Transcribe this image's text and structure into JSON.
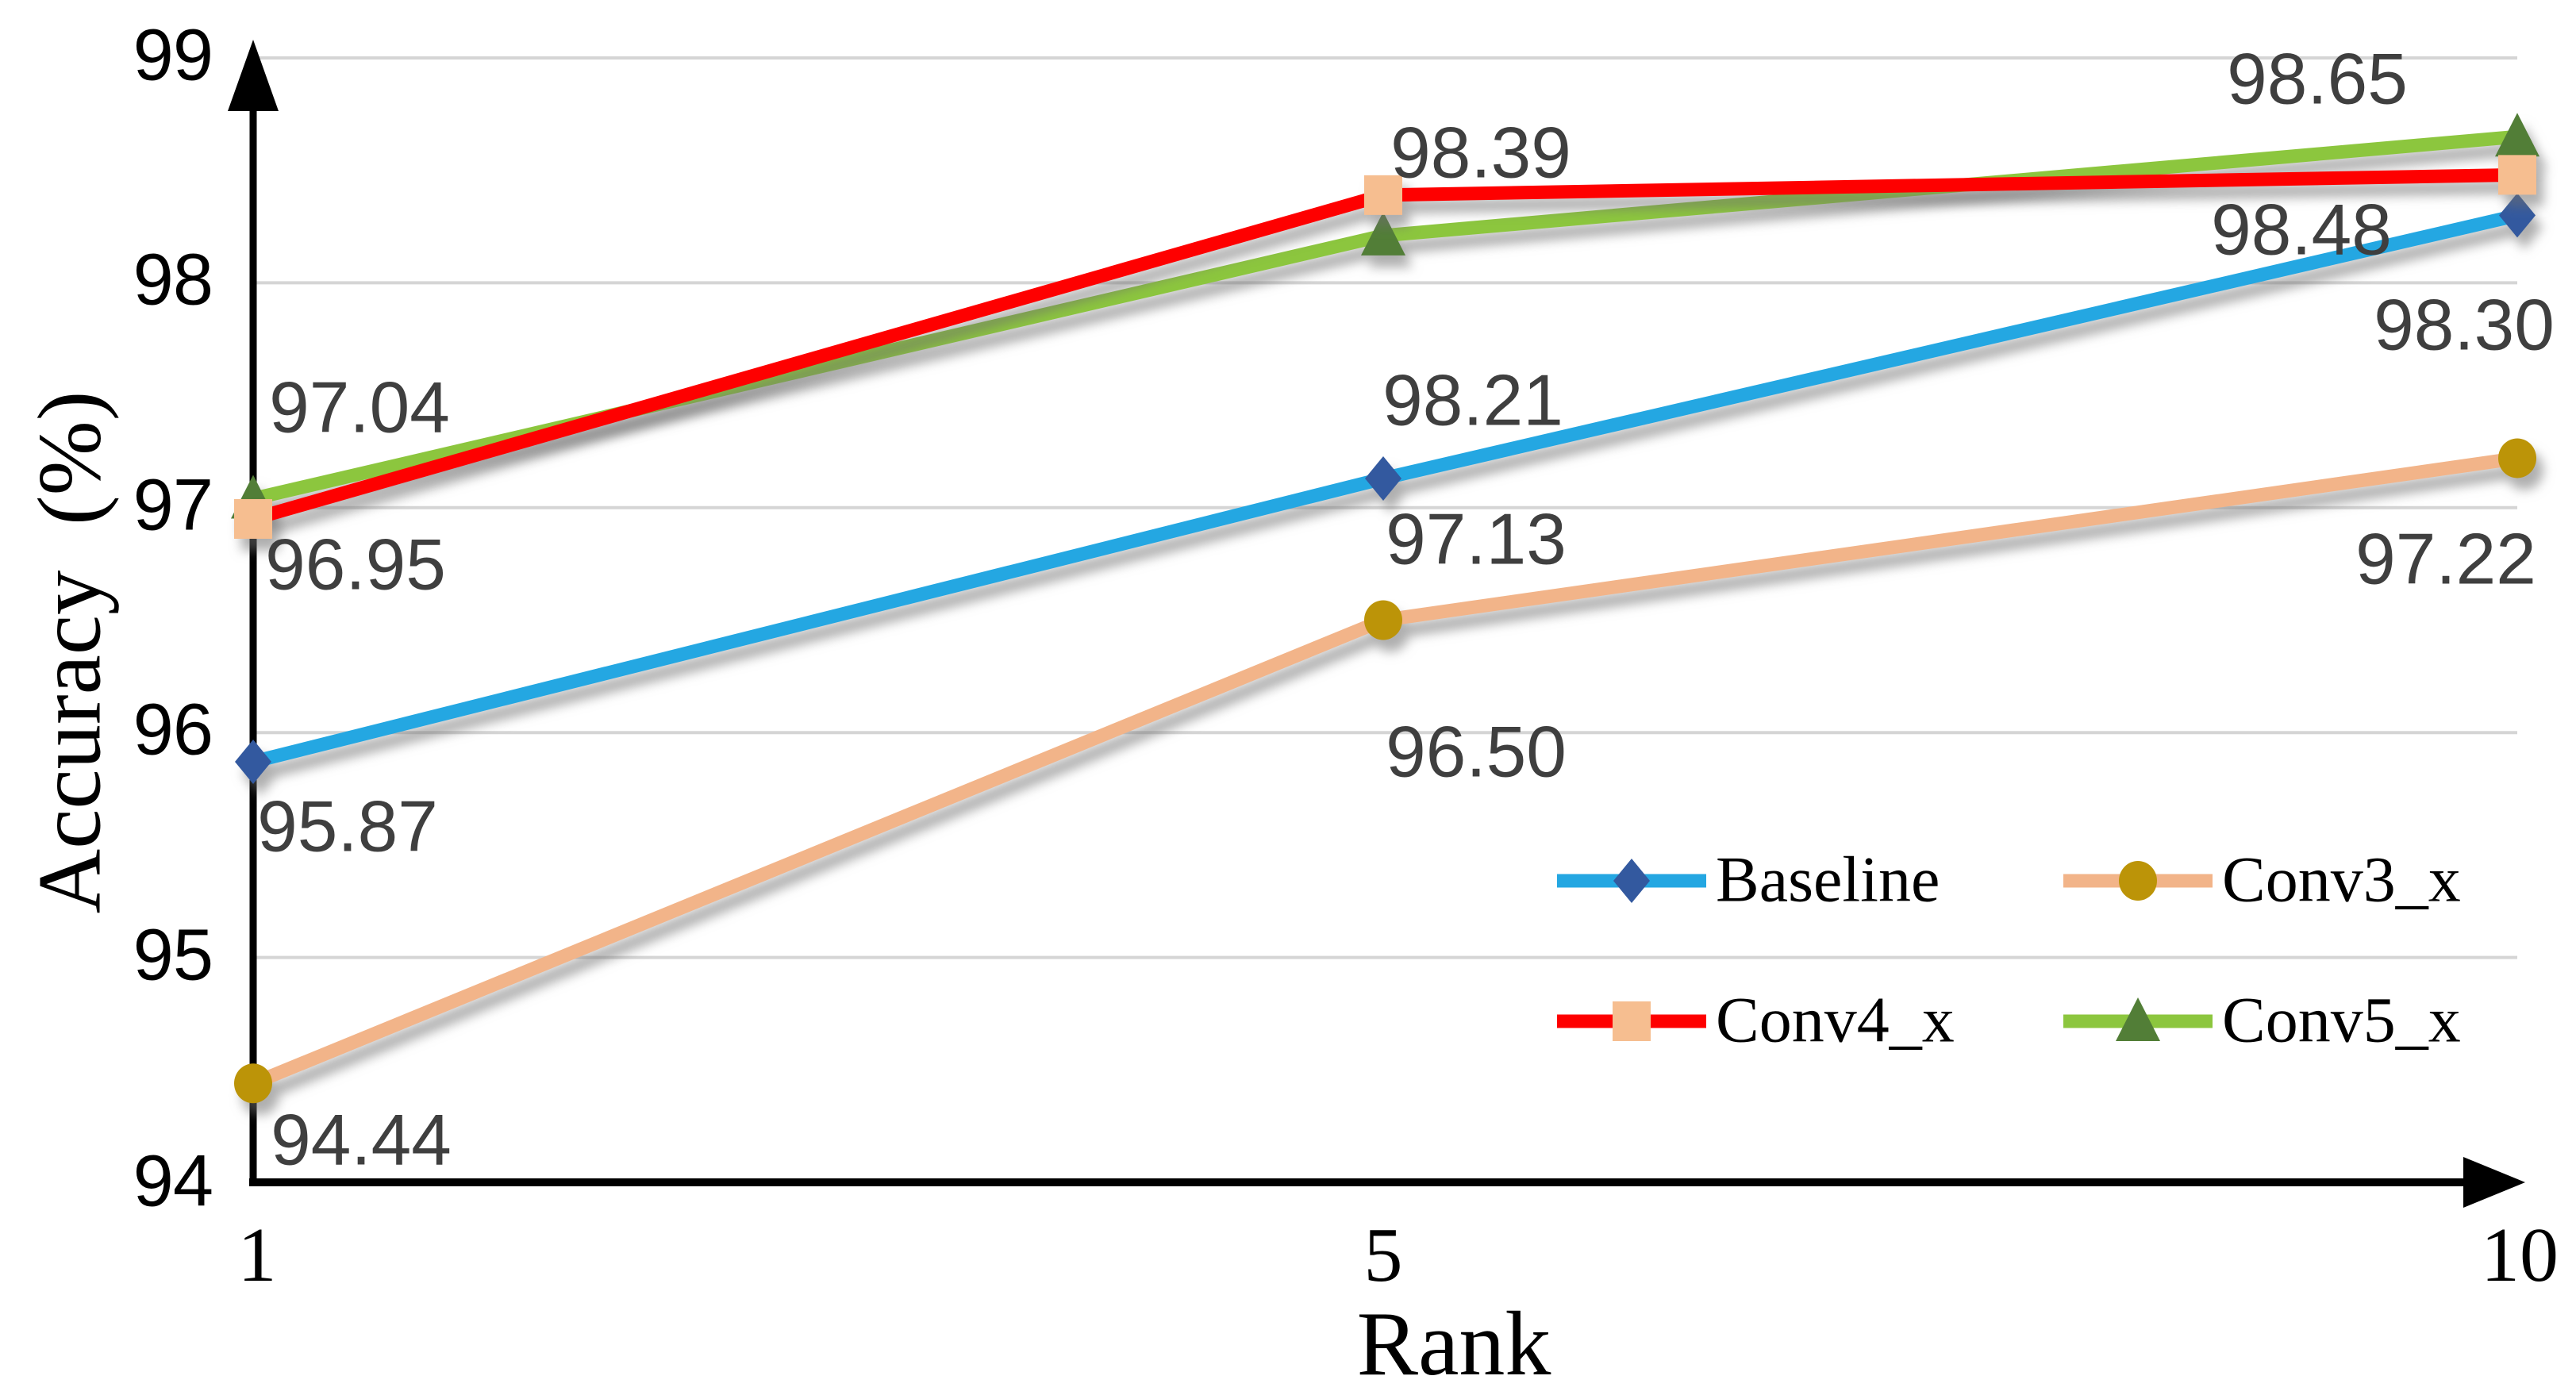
{
  "figure": {
    "background": "#FFFFFF"
  },
  "chart_data": {
    "type": "line",
    "title": "",
    "xlabel": "Rank",
    "ylabel": "Accuracy  (%)",
    "x": [
      1,
      5,
      10
    ],
    "xtick_labels": [
      "1",
      "5",
      "10"
    ],
    "ytick_labels": [
      "99",
      "98",
      "97",
      "96",
      "95",
      "94"
    ],
    "ylim": [
      94,
      99
    ],
    "xlim": [
      1,
      10
    ],
    "grid": "horizontal gridlines at 95-99, light gray",
    "axes_style": "thick black axis lines with arrowheads at top of y-axis and right of x-axis",
    "legend_position": "inside plot, lower right, 2 columns x 2 rows",
    "label_color": "#3F3F3F",
    "grid_color": "#D5D5D5",
    "axis_color": "#000000",
    "series": [
      {
        "name": "Baseline",
        "line_color": "#24A7E2",
        "marker": "diamond",
        "marker_color": "#33599F",
        "values": [
          95.87,
          97.13,
          98.3
        ],
        "labels": [
          "95.87",
          "97.13",
          "98.30"
        ]
      },
      {
        "name": "Conv3_x",
        "line_color": "#F2B489",
        "marker": "circle",
        "marker_color": "#BC9408",
        "values": [
          94.44,
          96.5,
          97.22
        ],
        "labels": [
          "94.44",
          "96.50",
          "97.22"
        ]
      },
      {
        "name": "Conv4_x",
        "line_color": "#FE0000",
        "marker": "square",
        "marker_color": "#F6BE90",
        "values": [
          96.95,
          98.39,
          98.48
        ],
        "labels": [
          "96.95",
          "98.39",
          "98.48"
        ]
      },
      {
        "name": "Conv5_x",
        "line_color": "#8CC63E",
        "marker": "triangle",
        "marker_color": "#527E37",
        "values": [
          97.04,
          98.21,
          98.65
        ],
        "labels": [
          "97.04",
          "98.21",
          "98.65"
        ]
      }
    ]
  }
}
